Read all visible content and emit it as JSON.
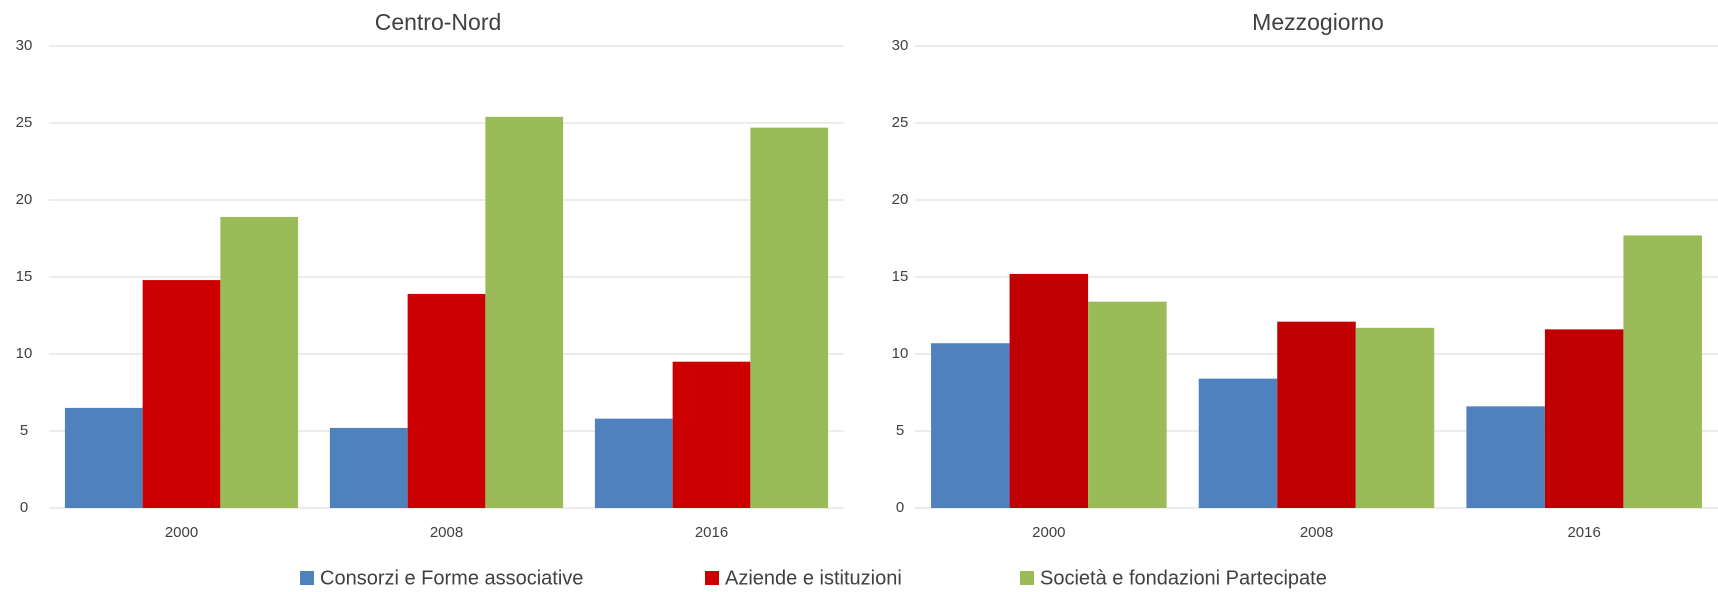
{
  "chart_data": [
    {
      "type": "bar",
      "title": "Centro-Nord",
      "categories": [
        "2000",
        "2008",
        "2016"
      ],
      "series": [
        {
          "name": "Consorzi e Forme associative",
          "color": "#4f81bd",
          "values": [
            6.5,
            5.2,
            5.8
          ]
        },
        {
          "name": "Aziende e istituzioni",
          "color": "#cc0000",
          "values": [
            14.8,
            13.9,
            9.5
          ]
        },
        {
          "name": "Società e fondazioni Partecipate",
          "color": "#9bbb59",
          "values": [
            18.9,
            25.4,
            24.7
          ]
        }
      ],
      "ylim": [
        0,
        30
      ],
      "yticks": [
        0,
        5,
        10,
        15,
        20,
        25,
        30
      ],
      "grid": true
    },
    {
      "type": "bar",
      "title": "Mezzogiorno",
      "categories": [
        "2000",
        "2008",
        "2016"
      ],
      "series": [
        {
          "color": "#4f81bd",
          "values": [
            10.7,
            8.4,
            6.6
          ]
        },
        {
          "color": "#c00000",
          "values": [
            15.2,
            12.1,
            11.6
          ]
        },
        {
          "color": "#9bbb59",
          "values": [
            13.4,
            11.7,
            17.7
          ]
        }
      ],
      "ylim": [
        0,
        30
      ],
      "yticks": [
        0,
        5,
        10,
        15,
        20,
        25,
        30
      ],
      "grid": true
    }
  ]
}
